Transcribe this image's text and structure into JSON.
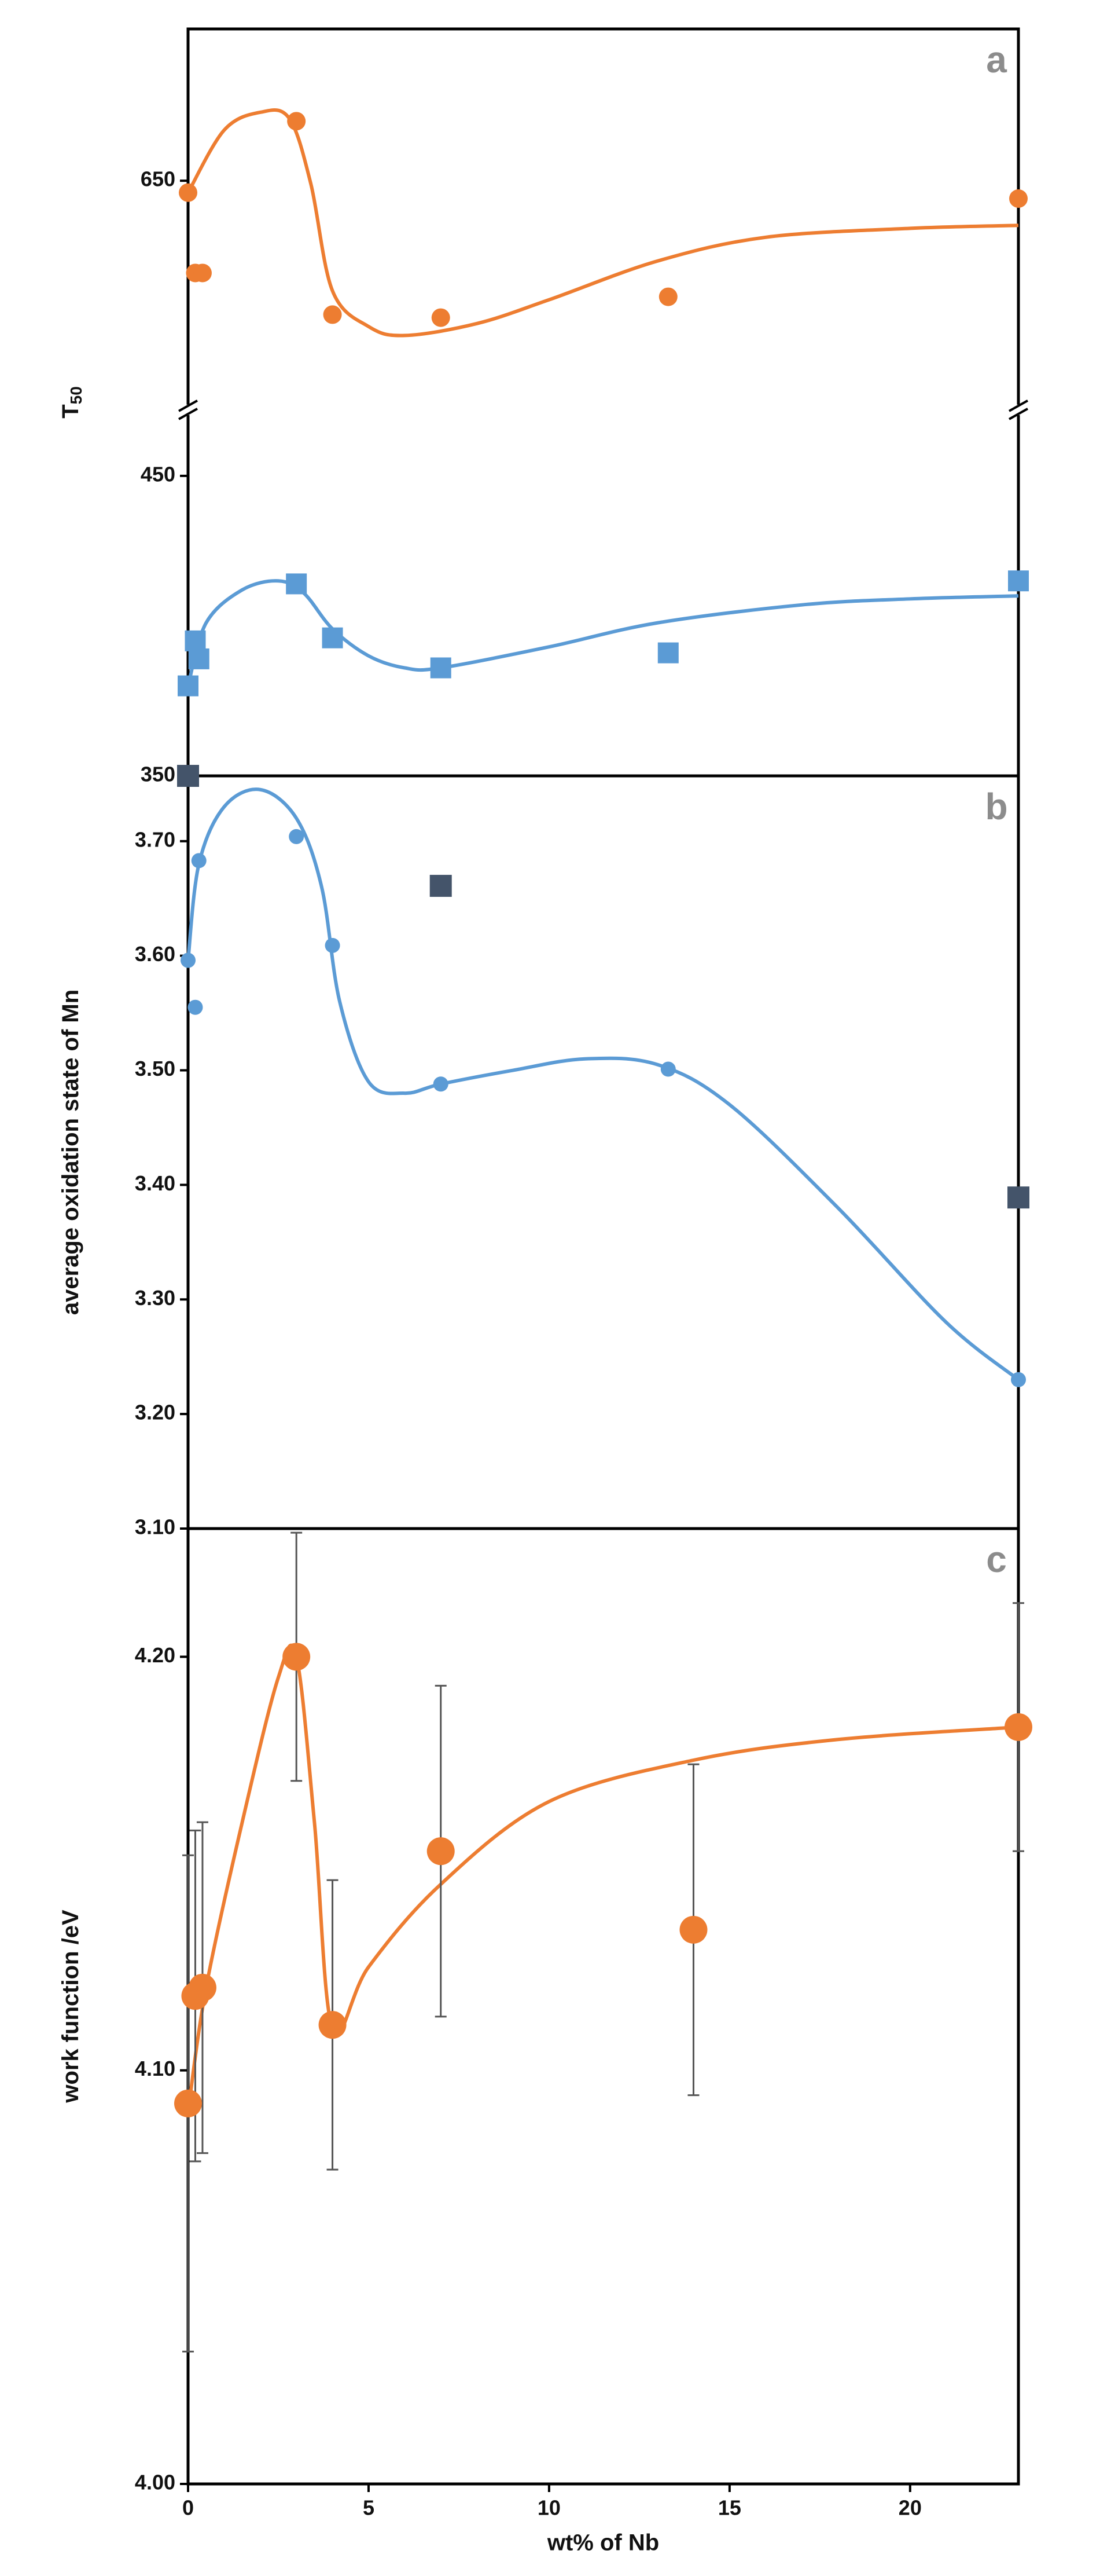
{
  "chart_data": [
    {
      "type": "scatter",
      "annotation": "a",
      "ylabel": "T",
      "ylabel_subscript": "50",
      "xlim": [
        0,
        23
      ],
      "segments": {
        "upper": {
          "ylim": [
            573,
            701
          ],
          "yticks": [
            650
          ]
        },
        "lower": {
          "ylim": [
            350,
            472
          ],
          "yticks": [
            350,
            450
          ]
        }
      },
      "series": [
        {
          "segment": "upper",
          "color": "#ED7D31",
          "marker": "circle",
          "x": [
            0,
            0.2,
            0.4,
            3,
            4,
            7,
            13.3,
            23
          ],
          "values": [
            646,
            619,
            619,
            670,
            605,
            604,
            611,
            644
          ],
          "fit": {
            "x": [
              0,
              1,
              2,
              2.8,
              3.4,
              4,
              5,
              6,
              8,
              10,
              13,
              16,
              20,
              23
            ],
            "values": [
              646,
              667,
              673,
              671,
              649,
              613,
              601,
              598,
              602,
              610,
              623,
              631,
              634,
              635
            ]
          }
        },
        {
          "segment": "lower",
          "color": "#5B9BD5",
          "marker": "square",
          "x": [
            0,
            0.2,
            0.3,
            3,
            4,
            7,
            13.3,
            23
          ],
          "values": [
            380,
            395,
            389,
            414,
            396,
            386,
            391,
            415
          ],
          "fit": {
            "x": [
              0,
              0.5,
              1.5,
              2.5,
              3.2,
              4,
              5,
              6,
              7,
              10,
              13,
              17,
              20,
              23
            ],
            "values": [
              380,
              401,
              412,
              415,
              411,
              399,
              390,
              386,
              386,
              393,
              401,
              407,
              409,
              410
            ]
          }
        }
      ]
    },
    {
      "type": "scatter",
      "annotation": "b",
      "ylabel": "average oxidation state of Mn",
      "xlim": [
        0,
        23
      ],
      "ylim": [
        3.1,
        3.757
      ],
      "yticks": [
        {
          "value": 3.1,
          "label": "3.10"
        },
        {
          "value": 3.2,
          "label": "3.20"
        },
        {
          "value": 3.3,
          "label": "3.30"
        },
        {
          "value": 3.4,
          "label": "3.40"
        },
        {
          "value": 3.5,
          "label": "3.50"
        },
        {
          "value": 3.6,
          "label": "3.60"
        },
        {
          "value": 3.7,
          "label": "3.70"
        }
      ],
      "series": [
        {
          "color": "#5B9BD5",
          "marker": "circle",
          "x": [
            0,
            0.2,
            0.3,
            3,
            4,
            7,
            13.3,
            23
          ],
          "values": [
            3.596,
            3.555,
            3.683,
            3.704,
            3.609,
            3.488,
            3.501,
            3.23
          ],
          "fit": {
            "x": [
              0,
              0.3,
              1,
              2,
              3,
              3.7,
              4.2,
              5,
              6,
              7,
              9,
              11,
              13,
              15,
              18,
              21,
              23
            ],
            "values": [
              3.596,
              3.68,
              3.73,
              3.745,
              3.72,
              3.66,
              3.56,
              3.49,
              3.48,
              3.488,
              3.5,
              3.51,
              3.505,
              3.47,
              3.38,
              3.28,
              3.23
            ]
          }
        },
        {
          "color": "#44546A",
          "marker": "square",
          "x": [
            0,
            7,
            23
          ],
          "values": [
            3.757,
            3.661,
            3.389
          ]
        }
      ]
    },
    {
      "type": "scatter",
      "annotation": "c",
      "ylabel": "work function /eV",
      "xlabel": "wt% of Nb",
      "xlim": [
        0,
        23
      ],
      "xticks": [
        0,
        5,
        10,
        15,
        20
      ],
      "ylim": [
        4.0,
        4.231
      ],
      "yticks": [
        {
          "value": 4.0,
          "label": "4.00"
        },
        {
          "value": 4.1,
          "label": "4.10"
        },
        {
          "value": 4.2,
          "label": "4.20"
        }
      ],
      "series": [
        {
          "color": "#ED7D31",
          "marker": "circle",
          "x": [
            0,
            0.2,
            0.4,
            3,
            4,
            7,
            14,
            23
          ],
          "values": [
            4.092,
            4.118,
            4.12,
            4.2,
            4.111,
            4.153,
            4.134,
            4.183
          ],
          "errors": [
            0.06,
            0.04,
            0.04,
            0.03,
            0.035,
            0.04,
            0.04,
            0.03
          ],
          "fit": {
            "x": [
              0,
              0.5,
              1.5,
              2.5,
              3,
              3.5,
              4,
              5,
              7,
              10,
              14,
              18,
              23
            ],
            "values": [
              4.09,
              4.12,
              4.16,
              4.195,
              4.2,
              4.16,
              4.11,
              4.125,
              4.145,
              4.165,
              4.175,
              4.18,
              4.183
            ]
          }
        }
      ]
    }
  ]
}
